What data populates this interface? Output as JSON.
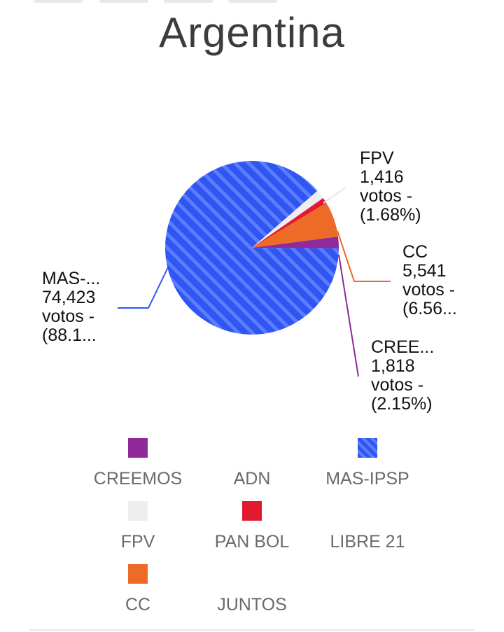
{
  "title": "Argentina",
  "colors": {
    "CREEMOS": "#8e2a9a",
    "MAS-IPSP": "#2f55f2",
    "MAS-IPSP-stripe": "#5d7dff",
    "FPV": "#eeeeee",
    "PAN BOL": "#e31a2f",
    "CC": "#ee6a27",
    "title": "#3c3c3c"
  },
  "chart_data": {
    "type": "pie",
    "title": "Argentina",
    "slices": [
      {
        "name": "CREEMOS",
        "value": 1818,
        "percent": 2.15
      },
      {
        "name": "MAS-IPSP",
        "value": 74423,
        "percent": 88.1
      },
      {
        "name": "FPV",
        "value": 1416,
        "percent": 1.68
      },
      {
        "name": "PAN BOL",
        "value": 900,
        "percent": 1.07
      },
      {
        "name": "CC",
        "value": 5541,
        "percent": 6.56
      }
    ],
    "callouts": [
      {
        "series": "FPV",
        "lines": [
          "FPV",
          "1,416",
          "votos -",
          "(1.68%)"
        ]
      },
      {
        "series": "CC",
        "lines": [
          "CC",
          "5,541",
          "votos -",
          "(6.56..."
        ]
      },
      {
        "series": "CREEMOS",
        "lines": [
          "CREE...",
          "1,818",
          "votos -",
          "(2.15%)"
        ]
      },
      {
        "series": "MAS-IPSP",
        "lines": [
          "MAS-...",
          "74,423",
          "votos -",
          "(88.1..."
        ]
      }
    ],
    "legend": [
      "CREEMOS",
      "ADN",
      "MAS-IPSP",
      "FPV",
      "PAN BOL",
      "LIBRE 21",
      "CC",
      "JUNTOS"
    ],
    "legend_position": "bottom"
  }
}
